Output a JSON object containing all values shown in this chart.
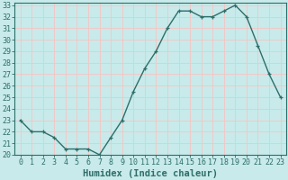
{
  "x": [
    0,
    1,
    2,
    3,
    4,
    5,
    6,
    7,
    8,
    9,
    10,
    11,
    12,
    13,
    14,
    15,
    16,
    17,
    18,
    19,
    20,
    21,
    22,
    23
  ],
  "y": [
    23,
    22,
    22,
    21.5,
    20.5,
    20.5,
    20.5,
    20,
    21.5,
    23,
    25.5,
    27.5,
    29,
    31,
    32.5,
    32.5,
    32,
    32,
    32.5,
    33,
    32,
    29.5,
    27,
    25
  ],
  "line_color": "#2e6e6a",
  "marker": "+",
  "bg_color": "#c8eaea",
  "plot_bg_color": "#c8eaea",
  "grid_color": "#f0c8c8",
  "xlabel": "Humidex (Indice chaleur)",
  "ylim": [
    20,
    33
  ],
  "xlim": [
    -0.5,
    23.5
  ],
  "yticks": [
    20,
    21,
    22,
    23,
    24,
    25,
    26,
    27,
    28,
    29,
    30,
    31,
    32,
    33
  ],
  "xticks": [
    0,
    1,
    2,
    3,
    4,
    5,
    6,
    7,
    8,
    9,
    10,
    11,
    12,
    13,
    14,
    15,
    16,
    17,
    18,
    19,
    20,
    21,
    22,
    23
  ],
  "tick_color": "#2e6e6a",
  "spine_color": "#2e6e6a",
  "label_fontsize": 7.5,
  "tick_fontsize": 6,
  "line_width": 1.0,
  "marker_size": 3.5
}
